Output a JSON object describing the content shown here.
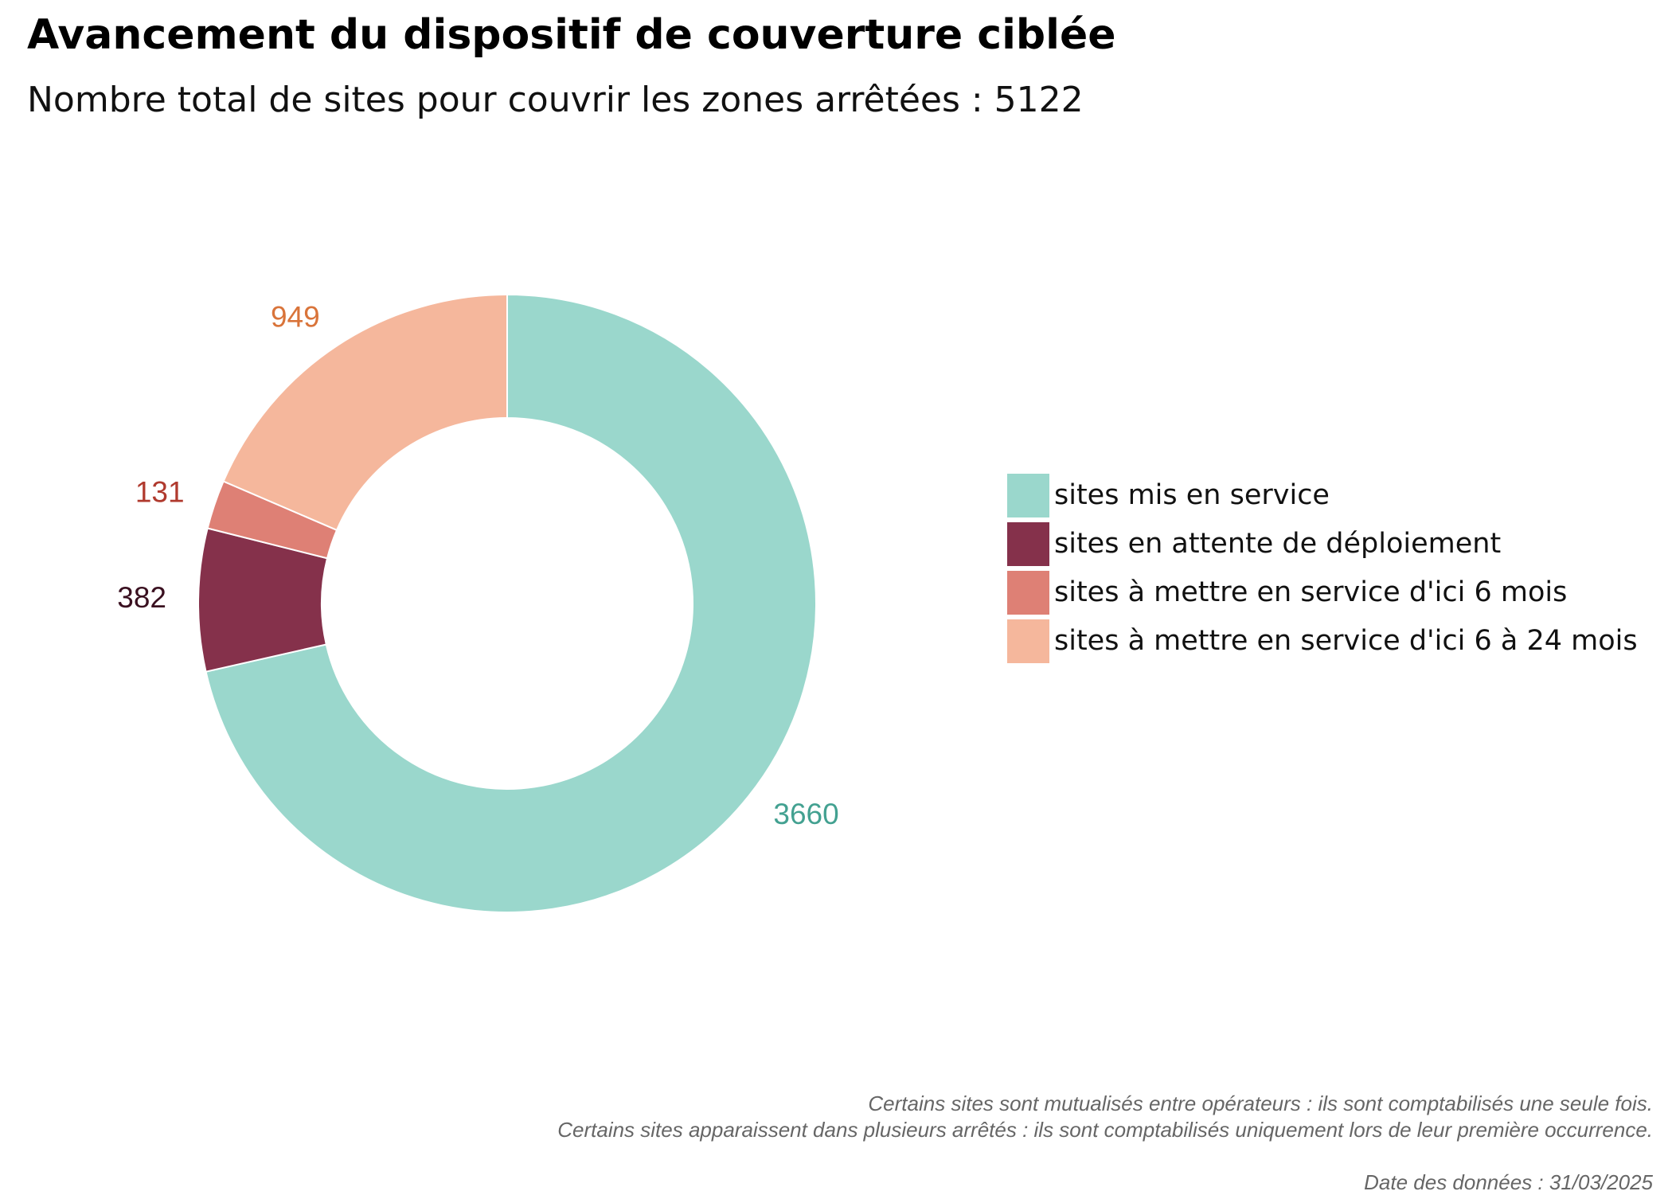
{
  "title": "Avancement du dispositif de couverture ciblée",
  "subtitle": "Nombre total de sites pour couvrir les zones arrêtées : 5122",
  "chart_data": {
    "type": "pie",
    "variant": "donut",
    "categories": [
      "sites mis en service",
      "sites en attente de déploiement",
      "sites à mettre en service d'ici 6 mois",
      "sites à mettre en service d'ici 6 à 24 mois"
    ],
    "values": [
      3660,
      382,
      131,
      949
    ],
    "colors": [
      "#9ad7cc",
      "#85314b",
      "#de8075",
      "#f5b79c"
    ],
    "label_colors": [
      "#43a191",
      "#3a1020",
      "#b03a2e",
      "#d9743a"
    ],
    "legend_position": "right"
  },
  "legend": {
    "items": [
      {
        "label": "sites mis en service",
        "color": "#9ad7cc"
      },
      {
        "label": "sites en attente de déploiement",
        "color": "#85314b"
      },
      {
        "label": "sites à mettre en service d'ici 6 mois",
        "color": "#de8075"
      },
      {
        "label": "sites à mettre en service d'ici 6 à 24 mois",
        "color": "#f5b79c"
      }
    ]
  },
  "notes": {
    "line1": "Certains sites sont mutualisés entre opérateurs : ils sont comptabilisés une seule fois.",
    "line2": "Certains sites apparaissent dans plusieurs arrêtés : ils sont comptabilisés uniquement lors de leur première occurrence."
  },
  "date_note": "Date des données : 31/03/2025"
}
